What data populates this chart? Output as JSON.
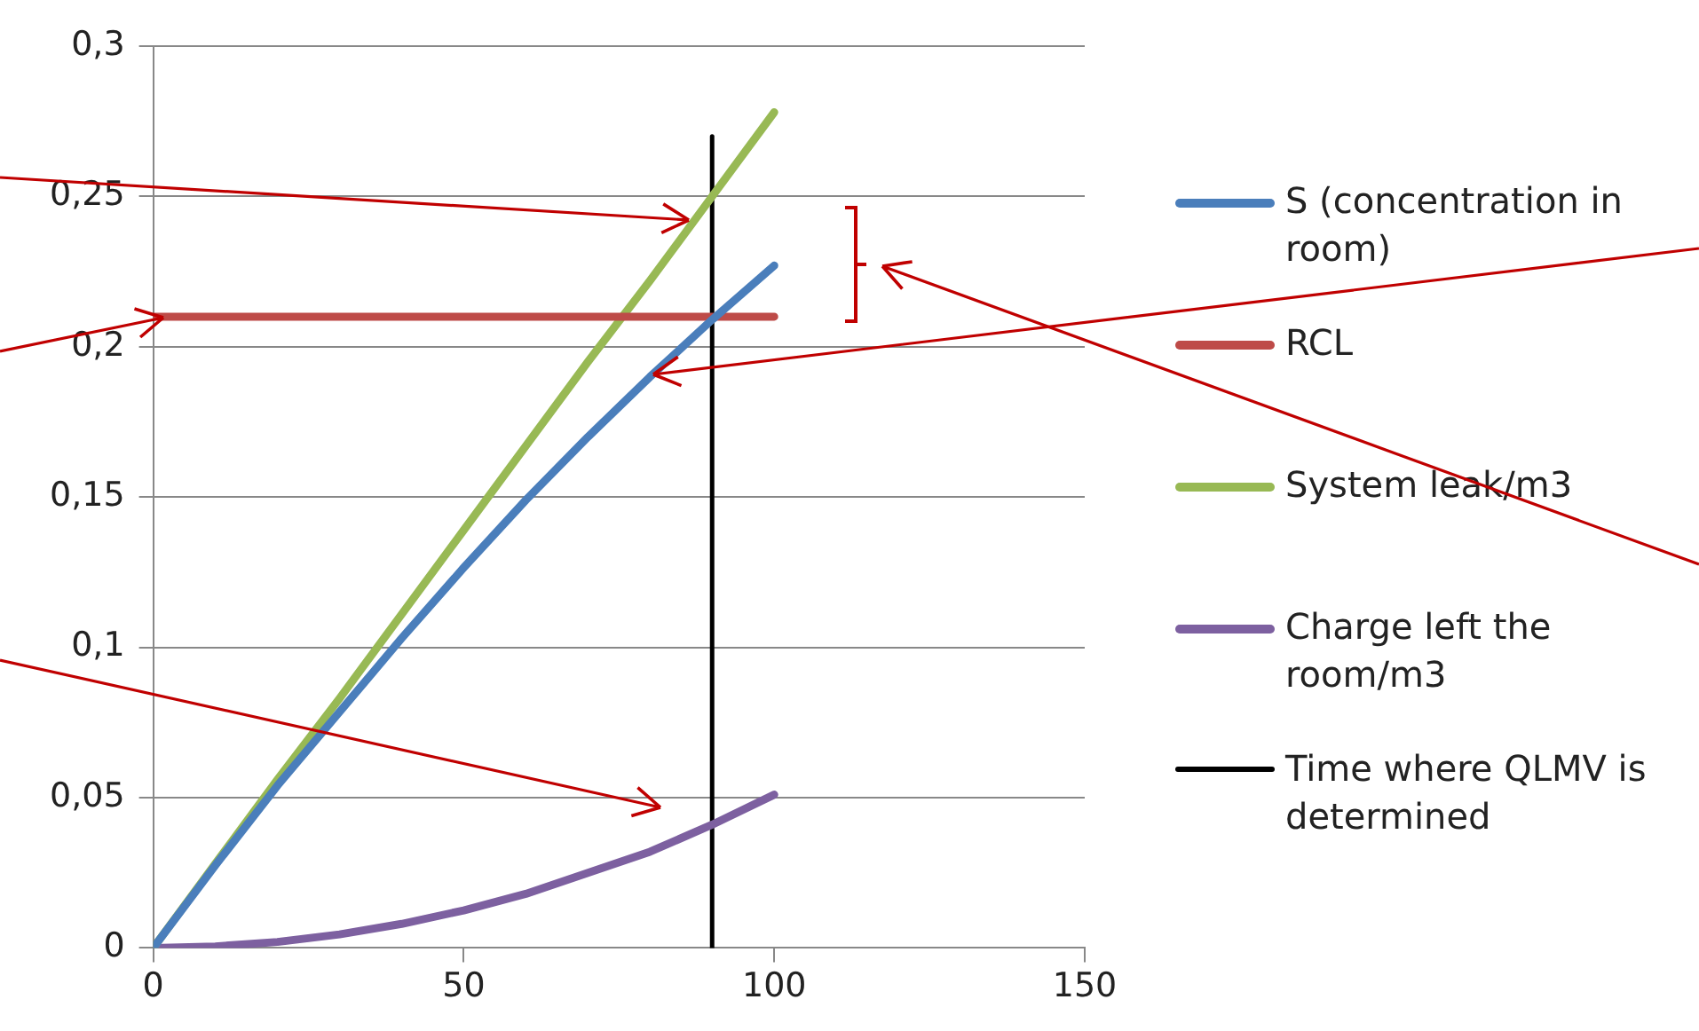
{
  "chart_data": {
    "type": "line",
    "xlim": [
      0,
      150
    ],
    "xticks": [
      0,
      50,
      100,
      150
    ],
    "ylim": [
      0,
      0.3
    ],
    "yticks": [
      0,
      {
        "value": 0.05,
        "label": "0,05"
      },
      {
        "value": 0.1,
        "label": "0,1"
      },
      {
        "value": 0.15,
        "label": "0,15"
      },
      {
        "value": 0.2,
        "label": "0,2"
      },
      {
        "value": 0.25,
        "label": "0,25"
      },
      {
        "value": 0.3,
        "label": "0,3"
      }
    ],
    "grid": "y",
    "legend": "right",
    "marker": "none",
    "line_style": "solid",
    "x": [
      0,
      10,
      20,
      30,
      40,
      50,
      60,
      70,
      80,
      90,
      100
    ],
    "series": [
      {
        "name": "S (concentration in room)",
        "color": "#4a7ebb",
        "values": [
          0,
          0.0275,
          0.054,
          0.0785,
          0.103,
          0.1265,
          0.149,
          0.17,
          0.19,
          0.209,
          0.227
        ]
      },
      {
        "name": "RCL",
        "color": "#be4b48",
        "values": [
          0.21,
          0.21,
          0.21,
          0.21,
          0.21,
          0.21,
          0.21,
          0.21,
          0.21,
          0.21,
          0.21
        ]
      },
      {
        "name": "System leak/m3",
        "color": "#98b954",
        "values": [
          0,
          0.028,
          0.056,
          0.083,
          0.111,
          0.139,
          0.167,
          0.195,
          0.222,
          0.25,
          0.278
        ]
      },
      {
        "name": "Charge left the room/m3",
        "color": "#7d60a0",
        "values": [
          0,
          0.0005,
          0.002,
          0.0045,
          0.008,
          0.0125,
          0.018,
          0.025,
          0.032,
          0.041,
          0.051
        ]
      },
      {
        "name": "Time where QLMV is determined",
        "color": "#000000",
        "x": [
          90,
          90
        ],
        "values": [
          0,
          0.27
        ]
      }
    ]
  }
}
